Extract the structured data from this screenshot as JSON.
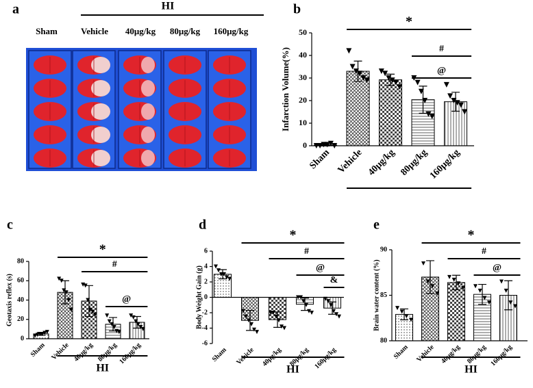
{
  "panel_a": {
    "label": "a",
    "group_label": "HI",
    "columns": [
      "Sham",
      "Vehicle",
      "40μg/kg",
      "80μg/kg",
      "160μg/kg"
    ]
  },
  "chart_data": [
    {
      "type": "bar",
      "label": "b",
      "y_label": "Infarction Volume(%)",
      "categories": [
        "Sham",
        "Vehicle",
        "40μg/kg",
        "80μg/kg",
        "160μg/kg"
      ],
      "values": [
        0.3,
        33,
        29.2,
        20.4,
        19.5
      ],
      "errors": [
        0.4,
        4.5,
        2.5,
        6,
        4.2
      ],
      "points": [
        [
          0,
          0,
          0.5,
          0.5,
          1,
          0
        ],
        [
          42,
          35,
          33,
          32,
          30,
          29
        ],
        [
          33,
          32,
          30,
          29,
          28,
          26
        ],
        [
          30,
          28,
          24,
          20,
          14,
          13
        ],
        [
          27,
          22,
          20,
          19,
          18,
          15
        ]
      ],
      "ylim": [
        0,
        50
      ],
      "yticks": [
        0,
        10,
        20,
        30,
        40,
        50
      ],
      "bar_patterns": [
        "dots",
        "crosshatch",
        "checker",
        "horizontal",
        "vertical"
      ],
      "annotations": [
        {
          "text": "*",
          "from": "Vehicle",
          "to": "160μg/kg"
        },
        {
          "text": "#",
          "from": "80μg/kg",
          "to": "160μg/kg"
        },
        {
          "text": "@",
          "from": "80μg/kg",
          "to": "160μg/kg"
        }
      ],
      "group": {
        "from": "Vehicle",
        "to": "160μg/kg"
      }
    },
    {
      "type": "bar",
      "label": "c",
      "y_label": "Geotaxis reflex (s)",
      "categories": [
        "Sham",
        "Vehicle",
        "40μg/kg",
        "80μg/kg",
        "160μg/kg"
      ],
      "values": [
        5,
        48,
        39,
        15,
        17
      ],
      "errors": [
        1.5,
        12,
        16,
        7,
        6
      ],
      "points": [
        [
          3,
          4,
          5,
          5,
          6,
          7
        ],
        [
          62,
          60,
          50,
          48,
          40,
          30
        ],
        [
          56,
          55,
          40,
          30,
          28,
          25
        ],
        [
          24,
          18,
          15,
          12,
          8,
          7
        ],
        [
          24,
          22,
          18,
          15,
          12,
          10
        ]
      ],
      "ylim": [
        0,
        80
      ],
      "yticks": [
        0,
        20,
        40,
        60,
        80
      ],
      "bar_patterns": [
        "dots",
        "crosshatch",
        "checker",
        "horizontal",
        "vertical"
      ],
      "annotations": [
        {
          "text": "*",
          "from": "Vehicle",
          "to": "160μg/kg"
        },
        {
          "text": "#",
          "from": "40μg/kg",
          "to": "160μg/kg"
        },
        {
          "text": "@",
          "from": "80μg/kg",
          "to": "160μg/kg"
        }
      ],
      "group": {
        "label": "HI",
        "from": "Vehicle",
        "to": "160μg/kg"
      }
    },
    {
      "type": "bar",
      "label": "d",
      "y_label": "Body Weight Gain (g)",
      "categories": [
        "Sham",
        "Vehicle",
        "40μg/kg",
        "80μg/kg",
        "160μg/kg"
      ],
      "values": [
        3,
        -3,
        -2.9,
        -0.9,
        -1.4
      ],
      "errors": [
        0.6,
        1.3,
        1.0,
        0.8,
        0.8
      ],
      "points": [
        [
          4,
          3.5,
          3,
          3,
          2.6,
          2.4
        ],
        [
          -1.8,
          -2.5,
          -3,
          -3.5,
          -4.2,
          -4.5
        ],
        [
          -2,
          -2,
          -2.5,
          -3,
          -3.8,
          -4
        ],
        [
          0,
          0,
          -0.5,
          -1,
          -1.8,
          -2
        ],
        [
          -0.2,
          -0.5,
          -1,
          -1.8,
          -2.2,
          -2.5
        ]
      ],
      "ylim": [
        -6,
        6
      ],
      "yticks": [
        -6,
        -4,
        -2,
        0,
        2,
        4,
        6
      ],
      "bar_patterns": [
        "dots",
        "crosshatch",
        "checker",
        "horizontal",
        "vertical"
      ],
      "annotations": [
        {
          "text": "*",
          "from": "Vehicle",
          "to": "160μg/kg"
        },
        {
          "text": "#",
          "from": "40μg/kg",
          "to": "160μg/kg"
        },
        {
          "text": "@",
          "from": "80μg/kg",
          "to": "160μg/kg"
        },
        {
          "text": "&",
          "from": "160μg/kg",
          "to": "160μg/kg"
        }
      ],
      "group": {
        "label": "HI",
        "from": "Vehicle",
        "to": "160μg/kg"
      }
    },
    {
      "type": "bar",
      "label": "e",
      "y_label": "Brain water content (%)",
      "categories": [
        "Sham",
        "Vehicle",
        "40μg/kg",
        "80μg/kg",
        "160μg/kg"
      ],
      "values": [
        82.9,
        87,
        86.4,
        85.1,
        85
      ],
      "errors": [
        0.6,
        1.8,
        0.8,
        1.1,
        1.6
      ],
      "points": [
        [
          83.6,
          83.2,
          82.7,
          82.3
        ],
        [
          88.5,
          86.5,
          86,
          85.2
        ],
        [
          87,
          86.7,
          86.3,
          85.8
        ],
        [
          86,
          85.5,
          84.7,
          84.2
        ],
        [
          86.5,
          85.5,
          84.2,
          83.8
        ]
      ],
      "ylim": [
        80,
        90
      ],
      "yticks": [
        80,
        85,
        90
      ],
      "bar_patterns": [
        "dots",
        "crosshatch",
        "checker",
        "horizontal",
        "vertical"
      ],
      "annotations": [
        {
          "text": "*",
          "from": "Vehicle",
          "to": "160μg/kg"
        },
        {
          "text": "#",
          "from": "40μg/kg",
          "to": "160μg/kg"
        },
        {
          "text": "@",
          "from": "80μg/kg",
          "to": "160μg/kg"
        }
      ],
      "group": {
        "label": "HI",
        "from": "Vehicle",
        "to": "160μg/kg"
      }
    }
  ]
}
